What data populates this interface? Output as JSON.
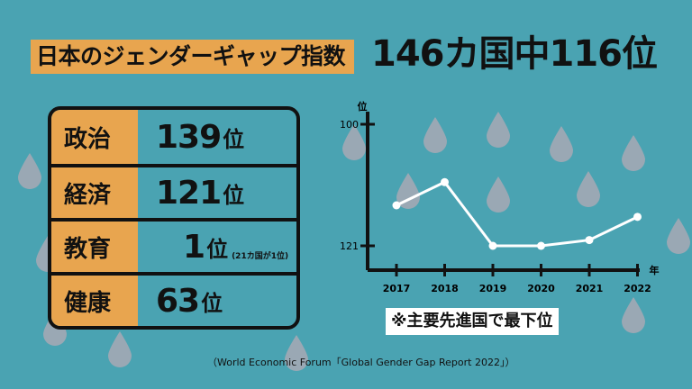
{
  "title": {
    "main": "日本のジェンダーギャップ指数",
    "rank": "146カ国中116位"
  },
  "colors": {
    "background": "#4aa3b2",
    "accent": "#e8a54f",
    "drop": "#9aa8b4"
  },
  "table": {
    "rows": [
      {
        "category": "政治",
        "number": "139",
        "unit": "位",
        "note": ""
      },
      {
        "category": "経済",
        "number": "121",
        "unit": "位",
        "note": ""
      },
      {
        "category": "教育",
        "number": "1",
        "unit": "位",
        "note": "(21カ国が1位)"
      },
      {
        "category": "健康",
        "number": "63",
        "unit": "位",
        "note": ""
      }
    ]
  },
  "chart_data": {
    "type": "line",
    "x": [
      "2017",
      "2018",
      "2019",
      "2020",
      "2021",
      "2022"
    ],
    "series": [
      {
        "values": [
          114,
          110,
          121,
          121,
          120,
          116
        ]
      }
    ],
    "ylabel": "位",
    "xlabel": "年",
    "y_ticks": [
      "100",
      "121"
    ],
    "ylim": [
      100,
      121
    ],
    "y_reversed": true,
    "grid": false
  },
  "note": "※主要先進国で最下位",
  "source": "（World Economic Forum「Global Gender Gap Report 2022」）"
}
